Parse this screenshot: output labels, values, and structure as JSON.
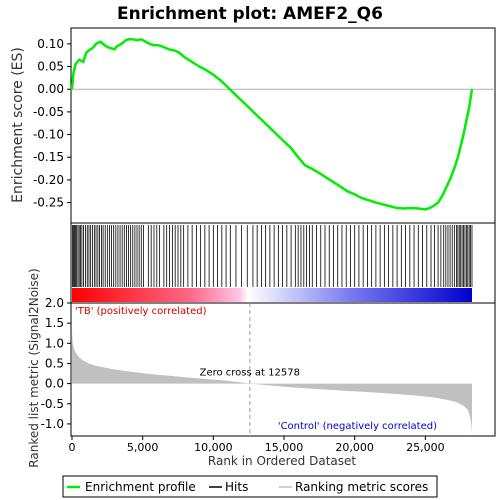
{
  "chart_data": {
    "type": "line",
    "title": "Enrichment plot: AMEF2_Q6",
    "es_panel": {
      "ylabel": "Enrichment score (ES)",
      "ylim": [
        -0.295,
        0.135
      ],
      "yticks": [
        0.1,
        0.05,
        0.0,
        -0.05,
        -0.1,
        -0.15,
        -0.2,
        -0.25
      ],
      "ytick_labels": [
        "0.10",
        "0.05",
        "0.00",
        "-0.05",
        "-0.10",
        "-0.15",
        "-0.20",
        "-0.25"
      ],
      "series": [
        {
          "name": "Enrichment profile",
          "color": "#00ee00",
          "x": [
            0,
            100,
            250,
            500,
            800,
            1000,
            1150,
            1300,
            1500,
            1700,
            2000,
            2200,
            2400,
            2600,
            2800,
            3000,
            3200,
            3500,
            3800,
            4000,
            4300,
            4600,
            4900,
            5200,
            5500,
            5800,
            6100,
            6400,
            6700,
            7000,
            7300,
            7600,
            8000,
            8500,
            9000,
            9500,
            10000,
            10500,
            11000,
            11500,
            12000,
            12500,
            13000,
            13500,
            14000,
            14500,
            15000,
            15500,
            16000,
            16500,
            17000,
            17500,
            18000,
            18500,
            19000,
            19500,
            20000,
            20500,
            21000,
            21500,
            22000,
            22500,
            23000,
            23500,
            24000,
            24500,
            25000,
            25300,
            25600,
            25900,
            26200,
            26500,
            26800,
            27100,
            27300,
            27500,
            27700,
            27900,
            28100,
            28300
          ],
          "y": [
            0.0,
            0.035,
            0.055,
            0.065,
            0.06,
            0.08,
            0.085,
            0.088,
            0.092,
            0.1,
            0.105,
            0.1,
            0.095,
            0.092,
            0.09,
            0.088,
            0.095,
            0.1,
            0.108,
            0.11,
            0.11,
            0.108,
            0.11,
            0.105,
            0.1,
            0.097,
            0.097,
            0.094,
            0.09,
            0.087,
            0.085,
            0.08,
            0.07,
            0.06,
            0.05,
            0.042,
            0.032,
            0.02,
            0.005,
            -0.01,
            -0.025,
            -0.04,
            -0.055,
            -0.07,
            -0.085,
            -0.1,
            -0.115,
            -0.13,
            -0.15,
            -0.168,
            -0.176,
            -0.185,
            -0.195,
            -0.205,
            -0.215,
            -0.225,
            -0.232,
            -0.24,
            -0.245,
            -0.25,
            -0.254,
            -0.258,
            -0.262,
            -0.263,
            -0.262,
            -0.263,
            -0.265,
            -0.262,
            -0.257,
            -0.25,
            -0.235,
            -0.215,
            -0.195,
            -0.17,
            -0.15,
            -0.125,
            -0.1,
            -0.07,
            -0.04,
            0.0
          ]
        }
      ]
    },
    "hits_panel": {
      "legend_name": "Hits",
      "positions": [
        40,
        110,
        180,
        250,
        330,
        420,
        510,
        600,
        700,
        820,
        950,
        1080,
        1200,
        1320,
        1450,
        1580,
        1700,
        1830,
        1950,
        2080,
        2200,
        2350,
        2500,
        2650,
        2800,
        2950,
        3100,
        3250,
        3400,
        3550,
        3700,
        3850,
        4000,
        4150,
        4300,
        4450,
        4600,
        4750,
        4900,
        5050,
        5400,
        5600,
        5800,
        6000,
        6200,
        6500,
        6700,
        6900,
        7100,
        7300,
        7500,
        7700,
        7900,
        8200,
        8500,
        8800,
        9100,
        9400,
        9700,
        10000,
        10300,
        10600,
        10900,
        11200,
        11600,
        12000,
        12400,
        12800,
        13100,
        13400,
        13700,
        14000,
        14300,
        14600,
        14900,
        15200,
        15500,
        15800,
        16000,
        16200,
        16400,
        16600,
        16800,
        17000,
        17300,
        17600,
        17900,
        18200,
        18500,
        18800,
        19100,
        19400,
        19700,
        20000,
        20300,
        20600,
        20900,
        21200,
        21500,
        21800,
        22100,
        22400,
        22700,
        23000,
        23300,
        23600,
        23900,
        24200,
        24500,
        24800,
        25100,
        25400,
        25650,
        25900,
        26100,
        26300,
        26450,
        26600,
        26750,
        26900,
        27050,
        27200,
        27300,
        27400,
        27500,
        27600,
        27700,
        27800,
        27900,
        28000,
        28100,
        28200,
        28300
      ]
    },
    "rank_panel": {
      "ylabel": "Ranked list metric (Signal2Noise)",
      "xlabel": "Rank in Ordered Dataset",
      "legend_name": "Ranking metric scores",
      "ylim": [
        -1.3,
        2.0
      ],
      "yticks": [
        2.0,
        1.5,
        1.0,
        0.5,
        0.0,
        -0.5,
        -1.0
      ],
      "ytick_labels": [
        "2.0",
        "1.5",
        "1.0",
        "0.5",
        "0.0",
        "-0.5",
        "-1.0"
      ],
      "xlim": [
        0,
        28500
      ],
      "xticks": [
        0,
        5000,
        10000,
        15000,
        20000,
        25000
      ],
      "xtick_labels": [
        "0",
        "5,000",
        "10,000",
        "15,000",
        "20,000",
        "25,000"
      ],
      "zero_cross_rank": 12578,
      "zero_cross_label": "Zero cross at 12578",
      "positive_label": "'TB' (positively correlated)",
      "negative_label": "'Control' (negatively correlated)",
      "metric_curve": {
        "x": [
          0,
          50,
          150,
          300,
          500,
          800,
          1200,
          1700,
          2300,
          3000,
          4000,
          5000,
          6000,
          7000,
          8000,
          9000,
          10000,
          11000,
          12000,
          12578,
          13500,
          15000,
          17000,
          19000,
          21000,
          23000,
          24500,
          25500,
          26500,
          27200,
          27700,
          28000,
          28150,
          28250,
          28300
        ],
        "y": [
          1.3,
          1.0,
          0.85,
          0.75,
          0.65,
          0.57,
          0.5,
          0.44,
          0.4,
          0.35,
          0.3,
          0.26,
          0.22,
          0.19,
          0.16,
          0.13,
          0.1,
          0.07,
          0.03,
          0.0,
          -0.03,
          -0.08,
          -0.13,
          -0.17,
          -0.21,
          -0.26,
          -0.3,
          -0.34,
          -0.4,
          -0.46,
          -0.55,
          -0.65,
          -0.8,
          -1.0,
          -1.25
        ]
      }
    },
    "legend": {
      "placement": "bottom",
      "items": [
        "Enrichment profile",
        "Hits",
        "Ranking metric scores"
      ]
    },
    "colors": {
      "profile": "#00ee00",
      "positive": "#ff0000",
      "negative": "#0000ff",
      "metric_fill": "#c0c0c0"
    }
  }
}
